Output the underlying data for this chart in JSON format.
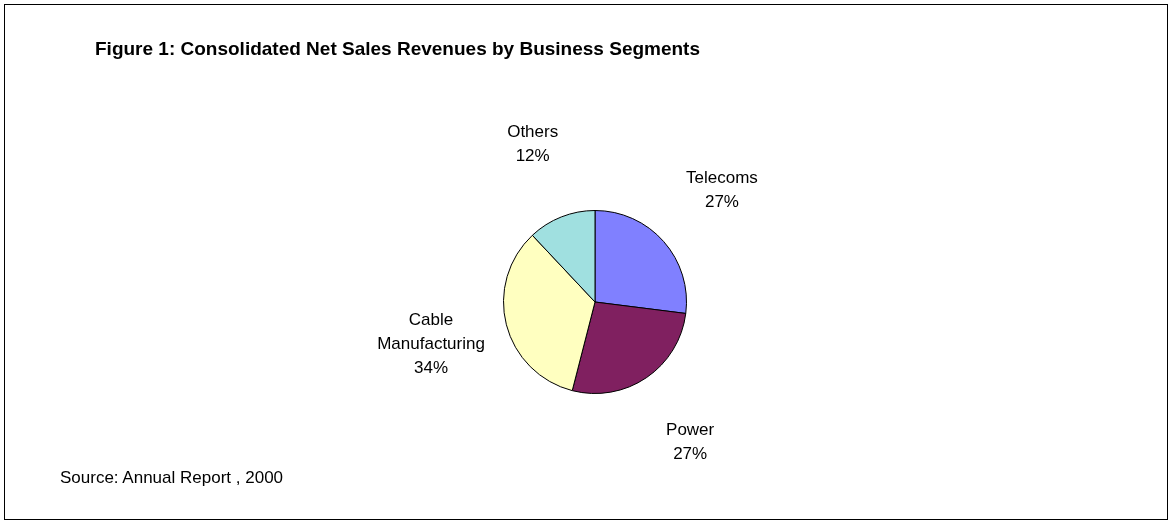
{
  "chart_data": {
    "type": "pie",
    "title": "Figure 1: Consolidated Net Sales Revenues by Business Segments",
    "categories": [
      "Telecoms",
      "Power",
      "Cable Manufacturing",
      "Others"
    ],
    "values": [
      27,
      27,
      34,
      12
    ],
    "value_labels": [
      "27%",
      "27%",
      "34%",
      "12%"
    ],
    "colors": [
      "#8080ff",
      "#802060",
      "#ffffc0",
      "#a0e0e0"
    ],
    "legend": false,
    "annotations": [
      "Source: Annual Report , 2000"
    ]
  }
}
